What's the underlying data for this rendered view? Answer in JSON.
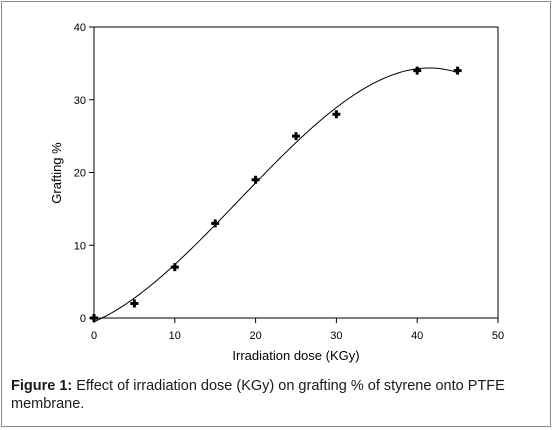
{
  "chart_data": {
    "type": "scatter",
    "xlabel": "Irradiation dose (KGy)",
    "ylabel": "Grafting %",
    "xlim": [
      0,
      50
    ],
    "ylim": [
      0,
      40
    ],
    "xticks": [
      0,
      10,
      20,
      30,
      40,
      50
    ],
    "yticks": [
      0,
      10,
      20,
      30,
      40
    ],
    "grid": false,
    "series": [
      {
        "points": [
          {
            "x": 0,
            "y": 0
          },
          {
            "x": 5,
            "y": 2
          },
          {
            "x": 10,
            "y": 7
          },
          {
            "x": 15,
            "y": 13
          },
          {
            "x": 20,
            "y": 19
          },
          {
            "x": 25,
            "y": 25
          },
          {
            "x": 30,
            "y": 28
          },
          {
            "x": 40,
            "y": 34
          },
          {
            "x": 45,
            "y": 34
          }
        ],
        "color": "#000000"
      }
    ],
    "fit_curve": {
      "type": "cubic",
      "color": "#000000"
    }
  },
  "caption": {
    "label": "Figure 1:",
    "text": " Effect of irradiation dose (KGy) on grafting % of styrene onto PTFE membrane."
  }
}
